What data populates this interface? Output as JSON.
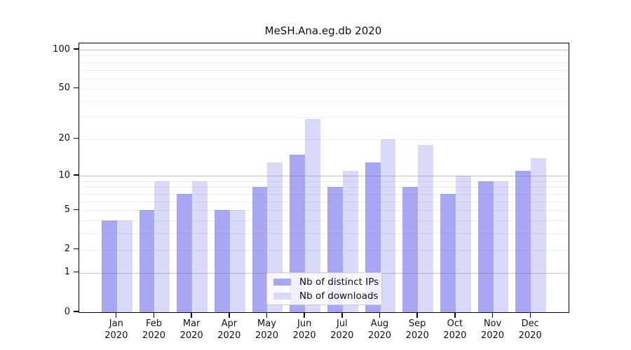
{
  "chart_data": {
    "type": "bar",
    "title": "MeSH.Ana.eg.db 2020",
    "categories": [
      "Jan",
      "Feb",
      "Mar",
      "Apr",
      "May",
      "Jun",
      "Jul",
      "Aug",
      "Sep",
      "Oct",
      "Nov",
      "Dec"
    ],
    "category_year": "2020",
    "series": [
      {
        "name": "Nb of distinct IPs",
        "color": "#a7a7f4",
        "values": [
          4,
          5,
          7,
          5,
          8,
          15,
          8,
          13,
          8,
          7,
          9,
          11
        ]
      },
      {
        "name": "Nb of downloads",
        "color": "#d9d9fa",
        "values": [
          4,
          9,
          9,
          5,
          13,
          29,
          11,
          20,
          18,
          10,
          9,
          14
        ]
      }
    ],
    "xlabel": "",
    "ylabel": "",
    "yaxis": {
      "scale": "log1p",
      "tick_labels": [
        0,
        1,
        2,
        5,
        10,
        20,
        50,
        100
      ],
      "ylim": [
        0,
        113
      ],
      "gridlines_major": [
        1,
        10,
        100
      ],
      "gridlines_minor": [
        2,
        3,
        4,
        5,
        6,
        7,
        8,
        9,
        20,
        30,
        40,
        50,
        60,
        70,
        80,
        90
      ]
    },
    "legend": {
      "position": "bottom-center"
    },
    "grid": true
  }
}
